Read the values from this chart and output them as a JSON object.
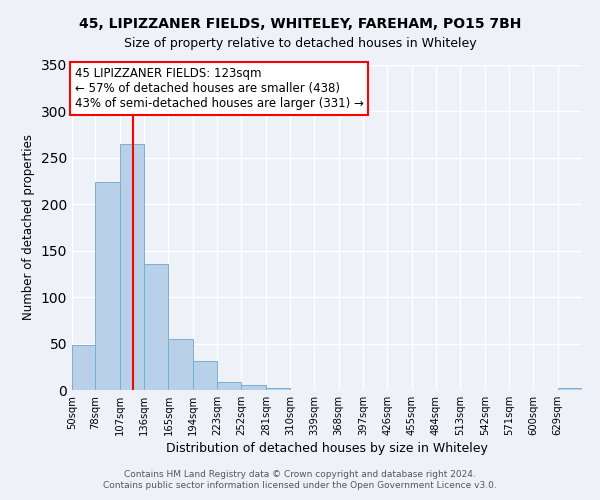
{
  "title": "45, LIPIZZANER FIELDS, WHITELEY, FAREHAM, PO15 7BH",
  "subtitle": "Size of property relative to detached houses in Whiteley",
  "xlabel": "Distribution of detached houses by size in Whiteley",
  "ylabel": "Number of detached properties",
  "bin_labels": [
    "50sqm",
    "78sqm",
    "107sqm",
    "136sqm",
    "165sqm",
    "194sqm",
    "223sqm",
    "252sqm",
    "281sqm",
    "310sqm",
    "339sqm",
    "368sqm",
    "397sqm",
    "426sqm",
    "455sqm",
    "484sqm",
    "513sqm",
    "542sqm",
    "571sqm",
    "600sqm",
    "629sqm"
  ],
  "bin_edges": [
    50,
    78,
    107,
    136,
    165,
    194,
    223,
    252,
    281,
    310,
    339,
    368,
    397,
    426,
    455,
    484,
    513,
    542,
    571,
    600,
    629
  ],
  "bar_heights": [
    49,
    224,
    265,
    136,
    55,
    31,
    9,
    5,
    2,
    0,
    0,
    0,
    0,
    0,
    0,
    0,
    0,
    0,
    0,
    0,
    2
  ],
  "bar_color": "#b8d0e8",
  "bar_edge_color": "#7aafd4",
  "vline_x": 123,
  "vline_color": "red",
  "ylim": [
    0,
    350
  ],
  "yticks": [
    0,
    50,
    100,
    150,
    200,
    250,
    300,
    350
  ],
  "annotation_title": "45 LIPIZZANER FIELDS: 123sqm",
  "annotation_line1": "← 57% of detached houses are smaller (438)",
  "annotation_line2": "43% of semi-detached houses are larger (331) →",
  "annotation_box_color": "#ffffff",
  "annotation_box_edge": "red",
  "footer1": "Contains HM Land Registry data © Crown copyright and database right 2024.",
  "footer2": "Contains public sector information licensed under the Open Government Licence v3.0.",
  "bg_color": "#eef2f8",
  "plot_bg_color": "#eef2f8",
  "grid_color": "#ffffff",
  "title_fontsize": 10,
  "subtitle_fontsize": 9
}
